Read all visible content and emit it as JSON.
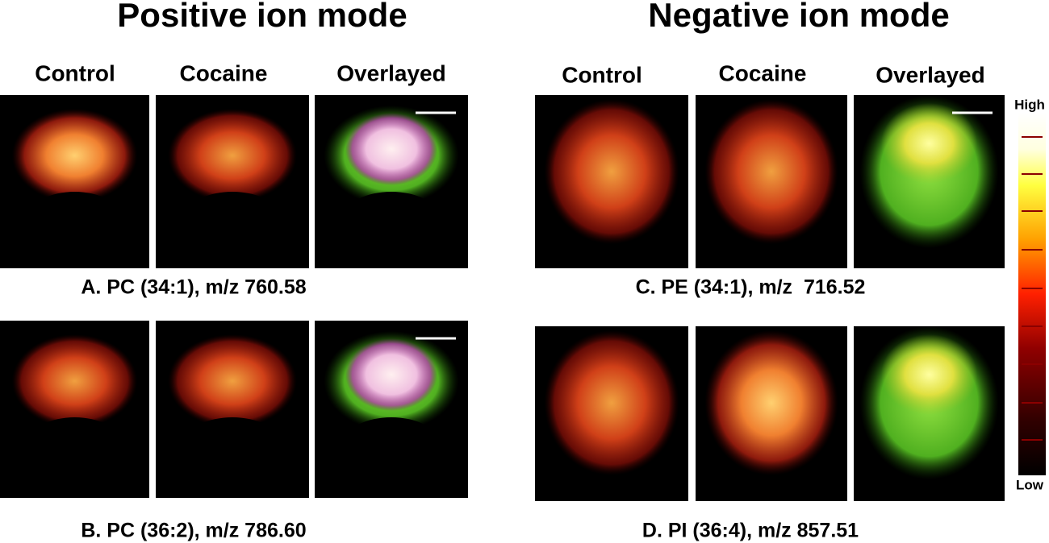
{
  "positive": {
    "title": "Positive ion mode",
    "columns": [
      "Control",
      "Cocaine",
      "Overlayed"
    ],
    "panels": [
      {
        "caption": "A. PC (34:1), m/z 760.58"
      },
      {
        "caption": "B. PC (36:2), m/z 786.60"
      }
    ]
  },
  "negative": {
    "title": "Negative ion mode",
    "columns": [
      "Control",
      "Cocaine",
      "Overlayed"
    ],
    "panels": [
      {
        "caption": "C. PE (34:1), m/z  716.52"
      },
      {
        "caption": "D. PI (36:4), m/z 857.51"
      }
    ]
  },
  "colorbar": {
    "high": "High",
    "low": "Low"
  }
}
